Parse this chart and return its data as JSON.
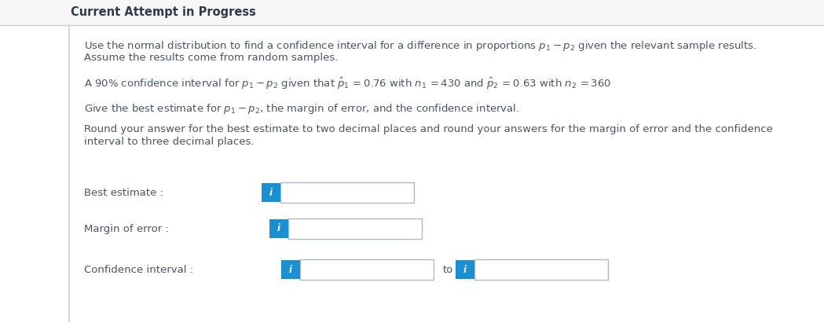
{
  "bg_color": "#ffffff",
  "header_bg_color": "#f7f7f8",
  "header_text": "Current Attempt in Progress",
  "header_color": "#2d3a4a",
  "header_fontsize": 10.5,
  "body_text_color": "#4a5568",
  "body_fontsize": 9.5,
  "left_border_color": "#d0d0d0",
  "header_border_color": "#d0d0d0",
  "label1": "Best estimate :",
  "label2": "Margin of error :",
  "label3": "Confidence interval :",
  "to_text": "to",
  "info_btn_color": "#1a8fd1",
  "info_btn_text": "i",
  "info_btn_text_color": "#ffffff",
  "box_border_color": "#b0b8c0",
  "box_fill_color": "#ffffff",
  "figw": 10.49,
  "figh": 4.11,
  "dpi": 100
}
